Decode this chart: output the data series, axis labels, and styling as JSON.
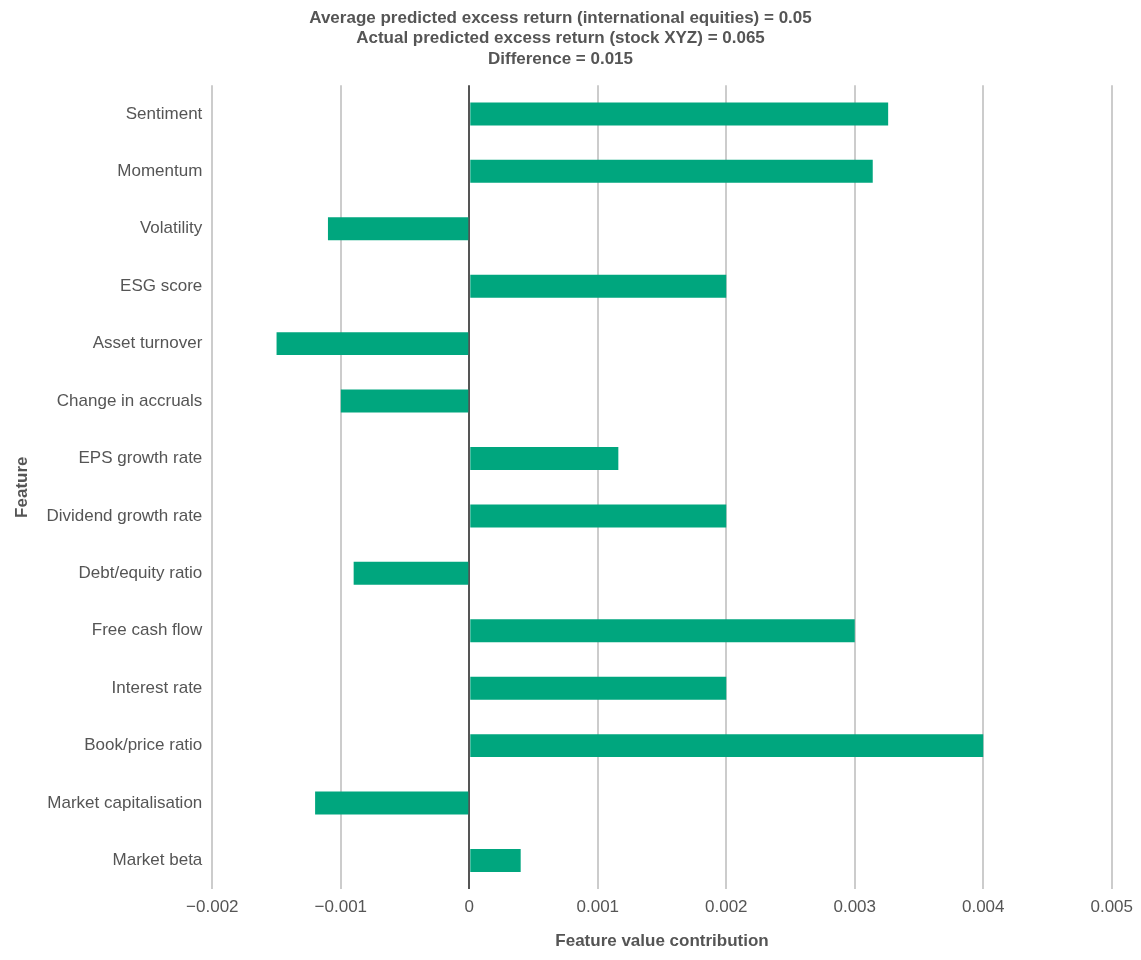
{
  "chart_data": {
    "type": "bar",
    "orientation": "horizontal",
    "title": "Average predicted excess return (international equities) = 0.05\nActual predicted excess return (stock XYZ) = 0.065\nDifference = 0.015",
    "xlabel": "Feature value contribution",
    "ylabel": "Feature",
    "categories": [
      "Sentiment",
      "Momentum",
      "Volatility",
      "ESG score",
      "Asset turnover",
      "Change in accruals",
      "EPS growth rate",
      "Dividend growth rate",
      "Debt/equity ratio",
      "Free cash flow",
      "Interest rate",
      "Book/price ratio",
      "Market capitalisation",
      "Market beta"
    ],
    "values": [
      0.00326,
      0.00314,
      -0.0011,
      0.002,
      -0.0015,
      -0.001,
      0.00116,
      0.002,
      -0.0009,
      0.003,
      0.002,
      0.004,
      -0.0012,
      0.0004
    ],
    "color": "#00a67e",
    "xlim": [
      -0.002,
      0.005
    ],
    "xticks": [
      {
        "value": -0.002,
        "label": "−0.002"
      },
      {
        "value": -0.001,
        "label": "−0.001"
      },
      0,
      0.001,
      0.002,
      0.003,
      0.004,
      0.005
    ],
    "grid": "x",
    "legend": false
  }
}
